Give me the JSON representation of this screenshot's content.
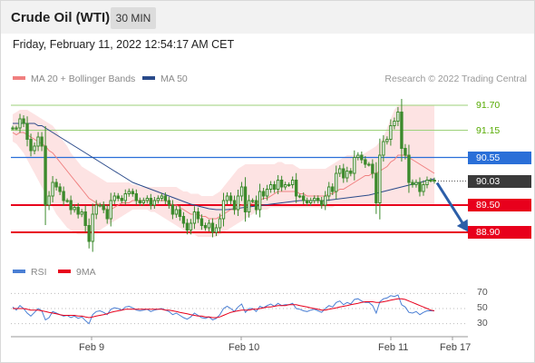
{
  "header": {
    "title": "Crude Oil (WTI)",
    "timeframe": "30 MIN"
  },
  "timestamp": "Friday, February 11, 2022 12:54:17 AM CET",
  "legend": {
    "ma20_label": "MA 20 + Bollinger Bands",
    "ma50_label": "MA 50",
    "copyright": "Research © 2022 Trading Central",
    "rsi_label": "RSI",
    "rsi_ma_label": "9MA"
  },
  "colors": {
    "ma20": "#f08080",
    "ma50": "#2a4a8a",
    "bollinger_fill": "#fde3e3",
    "candle": "#3c8a2c",
    "support": "#e8001c",
    "pivot": "#2a6fd8",
    "resistance": "#9dd17a",
    "arrow": "#2c5ea8",
    "rsi": "#4a7fd4",
    "rsi_ma": "#e8001c"
  },
  "chart_data": [
    {
      "type": "candlestick",
      "ylim": [
        88.4,
        92.0
      ],
      "levels": [
        {
          "label": "91.70",
          "value": 91.7,
          "kind": "resistance"
        },
        {
          "label": "91.15",
          "value": 91.15,
          "kind": "resistance"
        },
        {
          "label": "90.55",
          "value": 90.55,
          "kind": "pivot"
        },
        {
          "label": "90.03",
          "value": 90.03,
          "kind": "last"
        },
        {
          "label": "89.50",
          "value": 89.5,
          "kind": "support"
        },
        {
          "label": "88.90",
          "value": 88.9,
          "kind": "support"
        }
      ],
      "x_ticks": [
        "Feb 9",
        "Feb 10",
        "Feb 11",
        "Feb 17"
      ],
      "last_close": 90.03,
      "forecast_target": 88.9,
      "price_series": [
        91.2,
        91.2,
        91.4,
        91.3,
        90.95,
        90.7,
        90.8,
        91.0,
        90.8,
        89.5,
        89.7,
        90.0,
        89.9,
        89.8,
        89.6,
        89.6,
        89.4,
        89.45,
        89.3,
        89.35,
        89.05,
        88.7,
        89.3,
        89.5,
        89.5,
        89.4,
        89.2,
        89.6,
        89.7,
        89.65,
        89.6,
        89.75,
        89.8,
        89.75,
        89.6,
        89.55,
        89.6,
        89.65,
        89.5,
        89.6,
        89.65,
        89.7,
        89.6,
        89.5,
        89.3,
        89.4,
        89.25,
        89.1,
        88.95,
        89.1,
        89.35,
        89.2,
        89.05,
        89.0,
        89.1,
        88.9,
        89.0,
        89.2,
        89.6,
        89.7,
        89.6,
        89.4,
        89.7,
        89.9,
        89.35,
        89.6,
        89.6,
        89.4,
        89.8,
        89.7,
        89.85,
        89.95,
        89.85,
        90.05,
        89.9,
        89.95,
        89.95,
        90.05,
        89.7,
        89.7,
        89.6,
        89.55,
        89.6,
        89.65,
        89.6,
        89.5,
        89.7,
        89.9,
        89.8,
        90.2,
        90.3,
        90.1,
        90.25,
        90.2,
        90.55,
        90.6,
        90.5,
        90.4,
        90.4,
        90.2,
        89.55,
        90.6,
        90.9,
        90.95,
        91.25,
        91.35,
        91.55,
        90.75,
        90.6,
        90.0,
        89.95,
        90.0,
        89.8,
        89.95,
        90.05,
        90.05,
        90.03
      ],
      "ma20": [
        91.1,
        91.05,
        91.1,
        91.1,
        91.05,
        91.0,
        90.95,
        90.9,
        90.85,
        90.8,
        90.7,
        90.65,
        90.55,
        90.45,
        90.35,
        90.25,
        90.15,
        90.05,
        89.95,
        89.85,
        89.75,
        89.65,
        89.6,
        89.55,
        89.5,
        89.45,
        89.4,
        89.4,
        89.45,
        89.5,
        89.55,
        89.55,
        89.55,
        89.6,
        89.6,
        89.6,
        89.6,
        89.6,
        89.6,
        89.6,
        89.6,
        89.6,
        89.6,
        89.55,
        89.5,
        89.5,
        89.45,
        89.4,
        89.35,
        89.3,
        89.3,
        89.3,
        89.25,
        89.25,
        89.2,
        89.2,
        89.2,
        89.25,
        89.3,
        89.35,
        89.4,
        89.4,
        89.45,
        89.5,
        89.5,
        89.5,
        89.55,
        89.55,
        89.6,
        89.65,
        89.65,
        89.7,
        89.75,
        89.8,
        89.8,
        89.8,
        89.8,
        89.8,
        89.8,
        89.75,
        89.75,
        89.7,
        89.7,
        89.7,
        89.7,
        89.7,
        89.7,
        89.75,
        89.75,
        89.8,
        89.85,
        89.85,
        89.9,
        89.95,
        90.0,
        90.05,
        90.1,
        90.15,
        90.15,
        90.2,
        90.2,
        90.25,
        90.3,
        90.35,
        90.45,
        90.5,
        90.6,
        90.6,
        90.6,
        90.55,
        90.5,
        90.45,
        90.4,
        90.35,
        90.3,
        90.25,
        90.2
      ],
      "ma50": [
        91.3,
        91.3,
        91.3,
        91.3,
        91.3,
        91.3,
        91.3,
        91.25,
        91.25,
        91.2,
        91.15,
        91.1,
        91.05,
        91.0,
        90.95,
        90.9,
        90.85,
        90.8,
        90.75,
        90.7,
        90.65,
        90.6,
        90.55,
        90.5,
        90.45,
        90.4,
        90.35,
        90.3,
        90.25,
        90.2,
        90.15,
        90.1,
        90.05,
        90.0,
        89.97,
        89.94,
        89.91,
        89.88,
        89.85,
        89.82,
        89.79,
        89.76,
        89.73,
        89.7,
        89.67,
        89.64,
        89.61,
        89.58,
        89.55,
        89.52,
        89.5,
        89.48,
        89.46,
        89.44,
        89.42,
        89.41,
        89.4,
        89.4,
        89.4,
        89.4,
        89.41,
        89.42,
        89.43,
        89.44,
        89.45,
        89.46,
        89.47,
        89.48,
        89.49,
        89.5,
        89.51,
        89.52,
        89.53,
        89.54,
        89.55,
        89.56,
        89.57,
        89.58,
        89.59,
        89.6,
        89.6,
        89.6,
        89.6,
        89.6,
        89.6,
        89.6,
        89.6,
        89.61,
        89.62,
        89.63,
        89.64,
        89.65,
        89.66,
        89.67,
        89.68,
        89.69,
        89.7,
        89.71,
        89.72,
        89.74,
        89.76,
        89.78,
        89.8,
        89.82,
        89.84,
        89.86,
        89.88,
        89.9,
        89.92,
        89.94,
        89.96,
        89.98,
        90.0,
        90.02,
        90.04,
        90.06,
        90.08
      ],
      "bb_upper": [
        91.5,
        91.55,
        91.6,
        91.6,
        91.6,
        91.55,
        91.5,
        91.45,
        91.4,
        91.35,
        91.3,
        91.25,
        91.15,
        91.0,
        90.9,
        90.8,
        90.65,
        90.55,
        90.45,
        90.35,
        90.3,
        90.25,
        90.2,
        90.15,
        90.1,
        90.05,
        90.0,
        90.0,
        90.0,
        90.0,
        90.0,
        90.0,
        90.0,
        89.95,
        89.95,
        89.9,
        89.9,
        89.9,
        89.9,
        89.9,
        89.9,
        89.9,
        89.9,
        89.9,
        89.9,
        89.9,
        89.85,
        89.8,
        89.8,
        89.75,
        89.75,
        89.75,
        89.7,
        89.7,
        89.7,
        89.7,
        89.75,
        89.8,
        89.9,
        90.0,
        90.1,
        90.2,
        90.3,
        90.35,
        90.4,
        90.4,
        90.4,
        90.4,
        90.4,
        90.4,
        90.4,
        90.4,
        90.4,
        90.45,
        90.45,
        90.4,
        90.4,
        90.4,
        90.35,
        90.3,
        90.3,
        90.3,
        90.3,
        90.3,
        90.3,
        90.3,
        90.3,
        90.35,
        90.4,
        90.45,
        90.5,
        90.55,
        90.6,
        90.6,
        90.6,
        90.6,
        90.6,
        90.65,
        90.7,
        90.75,
        90.8,
        90.9,
        91.0,
        91.2,
        91.4,
        91.6,
        91.7,
        91.7,
        91.7,
        91.7,
        91.7,
        91.7,
        91.7,
        91.7,
        91.7,
        91.7,
        91.7
      ],
      "bb_lower": [
        90.9,
        90.85,
        90.75,
        90.65,
        90.5,
        90.35,
        90.2,
        90.05,
        89.9,
        89.75,
        89.6,
        89.45,
        89.3,
        89.2,
        89.1,
        89.0,
        88.95,
        88.9,
        88.85,
        88.85,
        88.85,
        88.85,
        88.85,
        88.9,
        88.95,
        89.0,
        89.05,
        89.1,
        89.15,
        89.2,
        89.25,
        89.3,
        89.35,
        89.4,
        89.4,
        89.4,
        89.4,
        89.4,
        89.35,
        89.35,
        89.3,
        89.25,
        89.2,
        89.15,
        89.1,
        89.05,
        89.0,
        88.95,
        88.9,
        88.85,
        88.85,
        88.8,
        88.8,
        88.8,
        88.8,
        88.8,
        88.8,
        88.85,
        88.9,
        88.95,
        89.0,
        89.05,
        89.1,
        89.15,
        89.2,
        89.25,
        89.3,
        89.35,
        89.4,
        89.4,
        89.4,
        89.45,
        89.45,
        89.45,
        89.45,
        89.45,
        89.45,
        89.45,
        89.45,
        89.45,
        89.45,
        89.45,
        89.45,
        89.45,
        89.45,
        89.45,
        89.45,
        89.45,
        89.45,
        89.5,
        89.5,
        89.5,
        89.5,
        89.5,
        89.5,
        89.5,
        89.5,
        89.5,
        89.5,
        89.5,
        89.5,
        89.5,
        89.5,
        89.5,
        89.5,
        89.5,
        89.5,
        89.5,
        89.5,
        89.5,
        89.5,
        89.5,
        89.5,
        89.5,
        89.5,
        89.5,
        89.5
      ]
    },
    {
      "type": "line",
      "ylim": [
        20,
        80
      ],
      "y_ticks": [
        "70",
        "50",
        "30"
      ],
      "series": [
        {
          "name": "RSI",
          "values": [
            52,
            48,
            54,
            50,
            44,
            40,
            45,
            50,
            47,
            35,
            38,
            46,
            44,
            42,
            40,
            41,
            38,
            40,
            37,
            39,
            34,
            30,
            42,
            46,
            47,
            45,
            42,
            49,
            51,
            50,
            48,
            52,
            53,
            51,
            48,
            47,
            48,
            49,
            46,
            48,
            49,
            50,
            48,
            46,
            42,
            44,
            41,
            38,
            36,
            39,
            44,
            41,
            38,
            37,
            39,
            35,
            37,
            42,
            50,
            53,
            50,
            46,
            52,
            56,
            45,
            50,
            50,
            46,
            53,
            51,
            54,
            56,
            53,
            57,
            54,
            55,
            55,
            57,
            50,
            49,
            47,
            46,
            48,
            49,
            47,
            45,
            50,
            54,
            52,
            58,
            60,
            55,
            58,
            56,
            62,
            63,
            60,
            58,
            58,
            54,
            44,
            59,
            63,
            64,
            67,
            66,
            68,
            55,
            52,
            45,
            44,
            46,
            42,
            45,
            47,
            47,
            47
          ]
        },
        {
          "name": "9MA",
          "values": [
            50,
            50,
            50,
            50,
            49,
            48,
            48,
            48,
            47,
            46,
            45,
            44,
            43,
            42,
            41,
            41,
            41,
            41,
            40,
            40,
            39,
            38,
            39,
            40,
            41,
            42,
            43,
            45,
            46,
            47,
            48,
            49,
            49,
            49,
            49,
            49,
            49,
            49,
            49,
            49,
            49,
            49,
            48,
            48,
            47,
            46,
            45,
            44,
            43,
            42,
            41,
            40,
            40,
            39,
            39,
            38,
            38,
            39,
            41,
            43,
            45,
            46,
            47,
            48,
            48,
            48,
            49,
            49,
            50,
            51,
            52,
            52,
            53,
            54,
            54,
            54,
            55,
            55,
            55,
            54,
            53,
            52,
            51,
            50,
            49,
            48,
            48,
            49,
            50,
            51,
            52,
            53,
            54,
            55,
            56,
            57,
            58,
            59,
            59,
            59,
            58,
            58,
            59,
            60,
            61,
            62,
            63,
            63,
            62,
            60,
            58,
            56,
            54,
            52,
            50,
            48,
            47
          ]
        }
      ]
    }
  ]
}
